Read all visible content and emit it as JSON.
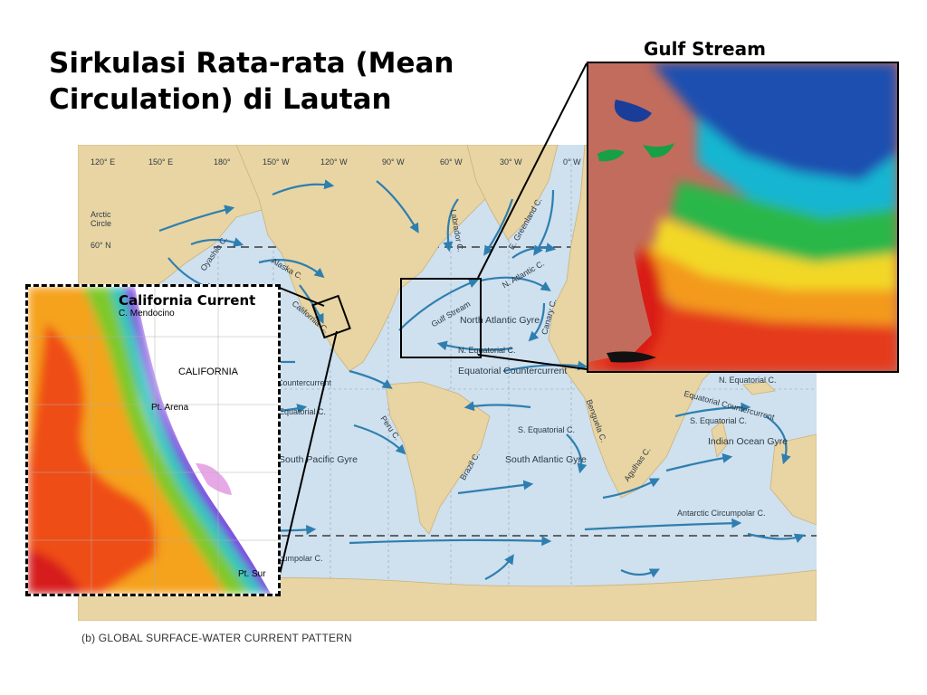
{
  "title": "Sirkulasi Rata-rata (Mean Circulation) di Lautan",
  "caption": "(b) GLOBAL SURFACE-WATER CURRENT PATTERN",
  "colors": {
    "ocean": "#cfe0ee",
    "land": "#e9d5a3",
    "arrow": "#2e7fb0",
    "gulf_land": "#c26c5d"
  },
  "map": {
    "longitudes": [
      "120° E",
      "150° E",
      "180°",
      "150° W",
      "120° W",
      "90° W",
      "60° W",
      "30° W",
      "0° W"
    ],
    "lat_lines": [
      "60° N",
      "Arctic Circle"
    ],
    "currents": [
      "Oyashio C.",
      "Alaska C.",
      "California C.",
      "Labrador C.",
      "E. Greenland C.",
      "N. Atlantic C.",
      "Gulf Stream",
      "Canary C.",
      "N. Equatorial C.",
      "N. Equatorial C.",
      "Equatorial Countercurrent",
      "Countercurrent",
      "Equatorial Countercurrent",
      "S. Equatorial C.",
      "S. Equatorial C.",
      "Equatorial C.",
      "Peru C.",
      "Brazil C.",
      "Benguela C.",
      "Agulhas C.",
      "Antarctic Circumpolar C.",
      "cumpolar C."
    ],
    "gyres": [
      "North Atlantic Gyre",
      "South Pacific Gyre",
      "South Atlantic Gyre",
      "Indian Ocean Gyre"
    ]
  },
  "insets": {
    "gulf": {
      "title": "Gulf Stream"
    },
    "california": {
      "title": "California Current",
      "labels": [
        "C. Mendocino",
        "CALIFORNIA",
        "Pt. Arena",
        "Pt. Sur"
      ]
    }
  }
}
